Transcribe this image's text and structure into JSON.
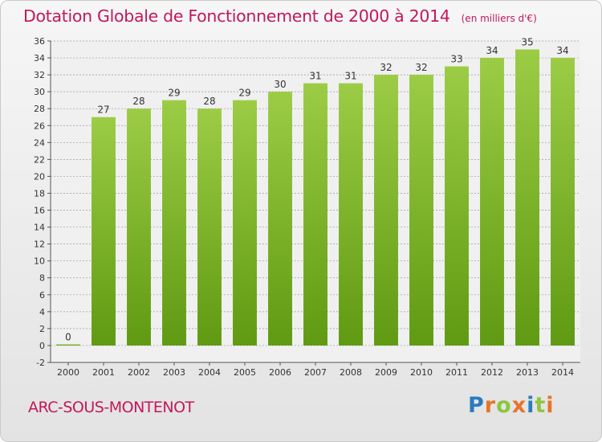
{
  "header": {
    "title": "Dotation Globale de Fonctionnement de 2000 à 2014",
    "unit": "(en milliers d'€)"
  },
  "footer": {
    "commune": "ARC-SOUS-MONTENOT",
    "logo_text": "Proxiti",
    "logo_letters": [
      {
        "char": "P",
        "color": "#2b7bbf"
      },
      {
        "char": "r",
        "color": "#e8742a"
      },
      {
        "char": "o",
        "color": "#8dc63f"
      },
      {
        "char": "x",
        "color": "#e8742a"
      },
      {
        "char": "i",
        "color": "#2b7bbf"
      },
      {
        "char": "t",
        "color": "#8dc63f"
      },
      {
        "char": "i",
        "color": "#e8742a"
      }
    ]
  },
  "colors": {
    "title": "#c2185b",
    "bar_top": "#9ccc45",
    "bar_bottom": "#5f9a12",
    "grid": "#9a9a9a"
  },
  "chart_data": {
    "type": "bar",
    "categories": [
      "2000",
      "2001",
      "2002",
      "2003",
      "2004",
      "2005",
      "2006",
      "2007",
      "2008",
      "2009",
      "2010",
      "2011",
      "2012",
      "2013",
      "2014"
    ],
    "values": [
      0,
      27,
      28,
      29,
      28,
      29,
      30,
      31,
      31,
      32,
      32,
      33,
      34,
      35,
      34
    ],
    "data_labels": [
      "0",
      "27",
      "28",
      "29",
      "28",
      "29",
      "30",
      "31",
      "31",
      "32",
      "32",
      "33",
      "34",
      "35",
      "34"
    ],
    "yticks": [
      -2,
      0,
      2,
      4,
      6,
      8,
      10,
      12,
      14,
      16,
      18,
      20,
      22,
      24,
      26,
      28,
      30,
      32,
      34,
      36
    ],
    "ylim": [
      -2,
      36
    ],
    "grid": true,
    "legend": "none"
  }
}
